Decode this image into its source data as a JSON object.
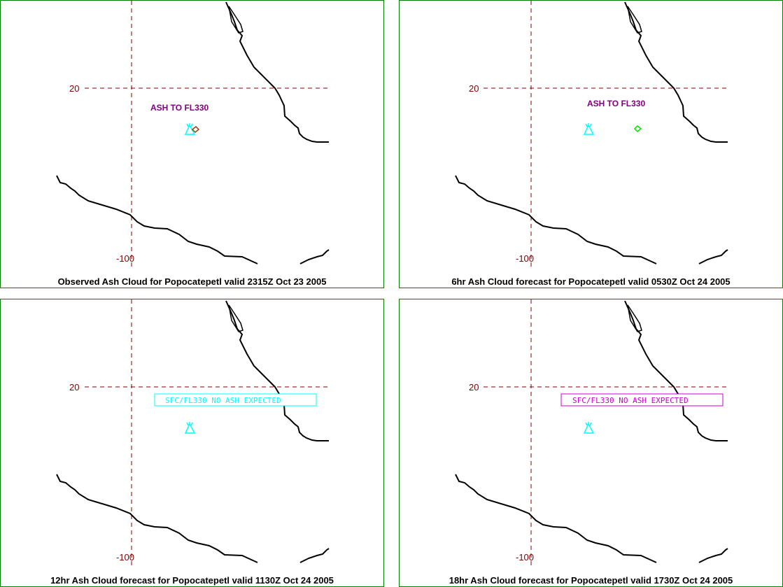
{
  "panels": [
    {
      "caption": "Observed Ash Cloud for Popocatepetl valid 2315Z Oct 23 2005",
      "lat_label": "20",
      "lon_label": "-100",
      "annotation": {
        "type": "text",
        "text": "ASH TO FL330",
        "color": "#800080"
      },
      "ash_polygon_color": "#8b4513",
      "volcano_color": "#00ffff"
    },
    {
      "caption": "6hr Ash Cloud forecast for Popocatepetl valid 0530Z Oct 24 2005",
      "lat_label": "20",
      "lon_label": "-100",
      "annotation": {
        "type": "text",
        "text": "ASH TO FL330",
        "color": "#800080"
      },
      "ash_polygon_color": "#00dd00",
      "volcano_color": "#00ffff"
    },
    {
      "caption": "12hr Ash Cloud forecast for Popocatepetl valid 1130Z Oct 24 2005",
      "lat_label": "20",
      "lon_label": "-100",
      "annotation": {
        "type": "box",
        "text": "SFC/FL330 NO ASH EXPECTED",
        "color": "#00ffff"
      },
      "volcano_color": "#00ffff"
    },
    {
      "caption": "18hr Ash Cloud forecast for Popocatepetl valid 1730Z Oct 24 2005",
      "lat_label": "20",
      "lon_label": "-100",
      "annotation": {
        "type": "box",
        "text": "SFC/FL330 NO ASH EXPECTED",
        "color": "#cc00cc"
      },
      "volcano_color": "#00ffff"
    }
  ],
  "colors": {
    "panel_border": "#008000",
    "graticule": "#800000",
    "coastline": "#000000"
  }
}
